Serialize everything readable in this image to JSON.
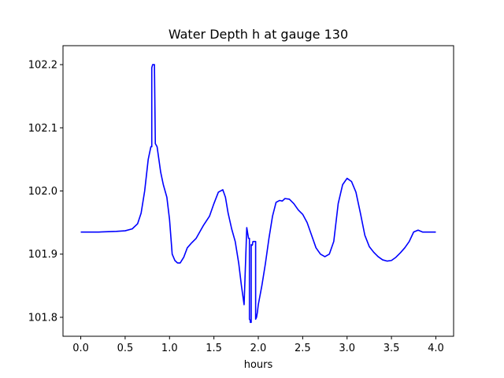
{
  "chart_data": {
    "type": "line",
    "title": "Water Depth h at gauge 130",
    "xlabel": "hours",
    "ylabel": "",
    "xlim": [
      -0.2,
      4.2
    ],
    "ylim": [
      101.77,
      102.23
    ],
    "x_ticks": [
      0.0,
      0.5,
      1.0,
      1.5,
      2.0,
      2.5,
      3.0,
      3.5,
      4.0
    ],
    "x_tick_labels": [
      "0.0",
      "0.5",
      "1.0",
      "1.5",
      "2.0",
      "2.5",
      "3.0",
      "3.5",
      "4.0"
    ],
    "y_ticks": [
      101.8,
      101.9,
      102.0,
      102.1,
      102.2
    ],
    "y_tick_labels": [
      "101.8",
      "101.9",
      "102.0",
      "102.1",
      "102.2"
    ],
    "grid": false,
    "legend": "none",
    "series": [
      {
        "color": "#0000ff",
        "x": [
          0.0,
          0.2,
          0.4,
          0.5,
          0.58,
          0.64,
          0.68,
          0.72,
          0.76,
          0.79,
          0.8,
          0.8,
          0.81,
          0.82,
          0.82,
          0.83,
          0.84,
          0.86,
          0.88,
          0.9,
          0.93,
          0.97,
          1.0,
          1.03,
          1.06,
          1.09,
          1.12,
          1.16,
          1.2,
          1.25,
          1.3,
          1.38,
          1.45,
          1.5,
          1.55,
          1.6,
          1.63,
          1.66,
          1.7,
          1.74,
          1.78,
          1.81,
          1.84,
          1.87,
          1.89,
          1.9,
          1.9,
          1.91,
          1.91,
          1.92,
          1.92,
          1.925,
          1.93,
          1.93,
          1.935,
          1.935,
          1.94,
          1.95,
          1.96,
          1.97,
          1.97,
          1.98,
          1.98,
          1.99,
          2.0,
          2.04,
          2.08,
          2.12,
          2.16,
          2.2,
          2.24,
          2.27,
          2.3,
          2.35,
          2.4,
          2.45,
          2.5,
          2.55,
          2.6,
          2.65,
          2.7,
          2.75,
          2.8,
          2.85,
          2.9,
          2.95,
          3.0,
          3.05,
          3.1,
          3.15,
          3.2,
          3.25,
          3.3,
          3.35,
          3.4,
          3.45,
          3.5,
          3.55,
          3.6,
          3.65,
          3.7,
          3.75,
          3.8,
          3.85,
          3.9,
          3.95,
          4.0
        ],
        "y": [
          101.935,
          101.935,
          101.936,
          101.937,
          101.94,
          101.948,
          101.965,
          102.0,
          102.05,
          102.07,
          102.07,
          102.195,
          102.2,
          102.2,
          102.2,
          102.2,
          102.075,
          102.07,
          102.05,
          102.03,
          102.01,
          101.99,
          101.955,
          101.9,
          101.89,
          101.886,
          101.886,
          101.895,
          101.91,
          101.918,
          101.925,
          101.945,
          101.96,
          101.98,
          101.998,
          102.002,
          101.99,
          101.965,
          101.94,
          101.92,
          101.885,
          101.85,
          101.82,
          101.942,
          101.925,
          101.925,
          101.797,
          101.795,
          101.792,
          101.792,
          101.915,
          101.914,
          101.914,
          101.914,
          101.915,
          101.917,
          101.92,
          101.92,
          101.92,
          101.92,
          101.797,
          101.8,
          101.8,
          101.808,
          101.82,
          101.85,
          101.885,
          101.925,
          101.96,
          101.982,
          101.985,
          101.984,
          101.988,
          101.987,
          101.98,
          101.97,
          101.963,
          101.95,
          101.93,
          101.91,
          101.9,
          101.896,
          101.9,
          101.92,
          101.98,
          102.01,
          102.02,
          102.015,
          101.998,
          101.965,
          101.93,
          101.912,
          101.903,
          101.896,
          101.891,
          101.889,
          101.89,
          101.895,
          101.902,
          101.91,
          101.92,
          101.935,
          101.938,
          101.935,
          101.935,
          101.935,
          101.935
        ]
      }
    ]
  }
}
